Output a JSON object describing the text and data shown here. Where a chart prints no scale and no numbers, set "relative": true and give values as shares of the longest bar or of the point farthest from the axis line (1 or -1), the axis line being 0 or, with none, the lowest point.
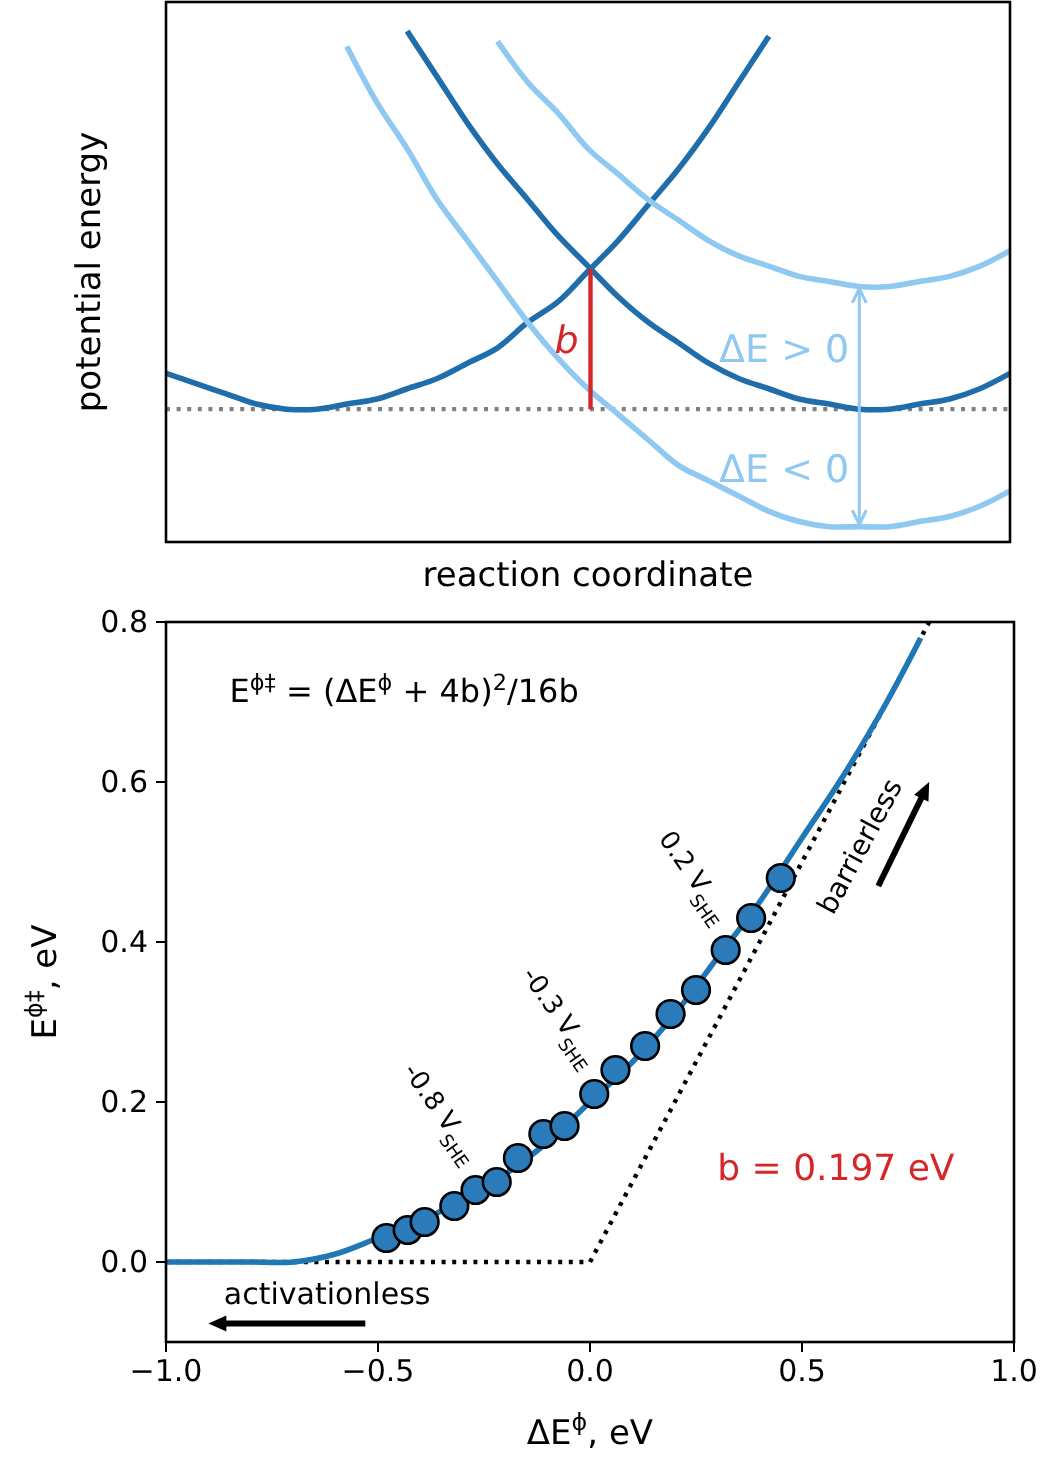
{
  "chart_data": [
    {
      "type": "line",
      "relative": true,
      "xlabel": "reaction coordinate",
      "ylabel": "potential energy",
      "categories": [
        null,
        null,
        null,
        null,
        null,
        null,
        null,
        null,
        null,
        null,
        null,
        null,
        null,
        null,
        null,
        null,
        null,
        null,
        null,
        null,
        null,
        null,
        null,
        null,
        null,
        null,
        null,
        null,
        null
      ],
      "series": [
        {
          "color": "#1f6eab",
          "values": [
            0.33,
            0.31,
            0.29,
            0.27,
            0.26,
            0.26,
            0.27,
            0.28,
            0.3,
            0.32,
            0.35,
            0.38,
            0.43,
            0.47,
            0.53,
            0.59,
            0.66,
            0.73,
            0.81,
            0.9,
            0.99,
            null,
            null,
            null,
            null,
            null,
            null,
            null,
            null
          ]
        },
        {
          "color": "#1f6eab",
          "values": [
            null,
            null,
            null,
            null,
            null,
            null,
            null,
            null,
            1.0,
            0.91,
            0.82,
            0.74,
            0.67,
            0.6,
            0.54,
            0.48,
            0.43,
            0.39,
            0.35,
            0.32,
            0.3,
            0.28,
            0.27,
            0.26,
            0.26,
            0.27,
            0.28,
            0.3,
            0.33
          ]
        },
        {
          "color": "#8fc8f0",
          "values": [
            null,
            null,
            null,
            null,
            null,
            null,
            null,
            null,
            null,
            null,
            null,
            0.98,
            0.9,
            0.84,
            0.77,
            0.72,
            0.67,
            0.63,
            0.59,
            0.56,
            0.54,
            0.52,
            0.51,
            0.5,
            0.5,
            0.51,
            0.52,
            0.54,
            0.57
          ]
        },
        {
          "color": "#8fc8f0",
          "values": [
            null,
            null,
            null,
            null,
            null,
            null,
            0.97,
            0.86,
            0.77,
            0.67,
            0.59,
            0.51,
            0.43,
            0.36,
            0.3,
            0.25,
            0.2,
            0.15,
            0.12,
            0.09,
            0.06,
            0.04,
            0.03,
            0.03,
            0.03,
            0.04,
            0.05,
            0.07,
            0.1
          ]
        }
      ],
      "ref_lines": [
        {
          "axis": "y",
          "value": 0.26,
          "color": "#808080",
          "line_style": "dotted"
        }
      ],
      "annotations": [
        "b",
        "ΔE > 0",
        "ΔE < 0"
      ]
    },
    {
      "type": "line",
      "xlabel": "ΔE$^{ϕ}$, eV",
      "ylabel": "E$^{ϕ‡}$, eV",
      "xlim": [
        -1,
        1
      ],
      "xticks": [
        {
          "value": -1,
          "label": "−1.0"
        },
        {
          "value": -0.5,
          "label": "−0.5"
        },
        {
          "value": 0,
          "label": "0.0"
        },
        {
          "value": 0.5,
          "label": "0.5"
        },
        {
          "value": 1,
          "label": "1.0"
        }
      ],
      "ylim": [
        -0.1,
        0.8
      ],
      "yticks": [
        {
          "value": 0,
          "label": "0.0"
        },
        {
          "value": 0.2,
          "label": "0.2"
        },
        {
          "value": 0.4,
          "label": "0.4"
        },
        {
          "value": 0.6,
          "label": "0.6"
        },
        {
          "value": 0.8,
          "label": "0.8"
        }
      ],
      "series": [
        {
          "color": "#000000",
          "line_style": "dotted",
          "x": [
            -1,
            0,
            0.8
          ],
          "values": [
            0,
            0,
            0.8
          ]
        },
        {
          "color": "#1f77b4",
          "x": [
            -1,
            -0.9,
            -0.8,
            -0.7,
            -0.6,
            -0.5,
            -0.4,
            -0.3,
            -0.2,
            -0.1,
            0,
            0.1,
            0.2,
            0.3,
            0.4,
            0.5,
            0.6,
            0.7,
            0.78
          ],
          "values": [
            0,
            0,
            0,
            0,
            0.01,
            0.03,
            0.05,
            0.08,
            0.11,
            0.15,
            0.2,
            0.25,
            0.31,
            0.38,
            0.45,
            0.53,
            0.61,
            0.7,
            0.78
          ]
        },
        {
          "type": "scatter",
          "color": "#2b7bba",
          "marker": "circle",
          "x": [
            -0.48,
            -0.43,
            -0.39,
            -0.32,
            -0.27,
            -0.22,
            -0.17,
            -0.11,
            -0.06,
            0.01,
            0.06,
            0.13,
            0.19,
            0.25,
            0.32,
            0.38,
            0.45
          ],
          "values": [
            0.03,
            0.04,
            0.05,
            0.07,
            0.09,
            0.1,
            0.13,
            0.16,
            0.17,
            0.21,
            0.24,
            0.27,
            0.31,
            0.34,
            0.39,
            0.43,
            0.48
          ]
        }
      ],
      "annotations": [
        "E$^{ϕ‡}$ = (ΔE$^{ϕ}$ + 4b)$^{2}$/16b",
        {
          "text": "-0.8 V$_{SHE}$",
          "x": -0.27,
          "y": 0.09
        },
        {
          "text": "-0.3 V$_{SHE}$",
          "x": 0.01,
          "y": 0.21
        },
        {
          "text": "0.2 V$_{SHE}$",
          "x": 0.32,
          "y": 0.39
        },
        "b = 0.197 eV",
        "activationless",
        "barrierless"
      ]
    }
  ]
}
